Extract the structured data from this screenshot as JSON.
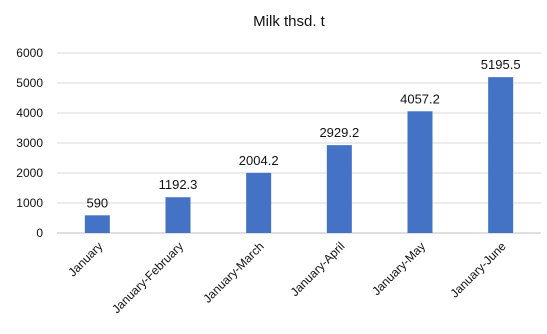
{
  "chart_data": {
    "type": "bar",
    "title": "Milk thsd. t",
    "categories": [
      "January",
      "January-February",
      "January-March",
      "January-April",
      "January-May",
      "January-June"
    ],
    "series": [
      {
        "values": [
          590,
          1192.3,
          2004.2,
          2929.2,
          4057.2,
          5195.5
        ],
        "labels": [
          "590",
          "1192.3",
          "2004.2",
          "2929.2",
          "4057.2",
          "5195.5"
        ]
      }
    ],
    "ylim": [
      0,
      6000
    ],
    "yticks": [
      0,
      1000,
      2000,
      3000,
      4000,
      5000,
      6000
    ],
    "ytick_labels": [
      "0",
      "1000",
      "2000",
      "3000",
      "4000",
      "5000",
      "6000"
    ],
    "grid": true,
    "legend": "none",
    "bar_color": "#4472C4",
    "gridline_color": "#D9D9D9"
  }
}
